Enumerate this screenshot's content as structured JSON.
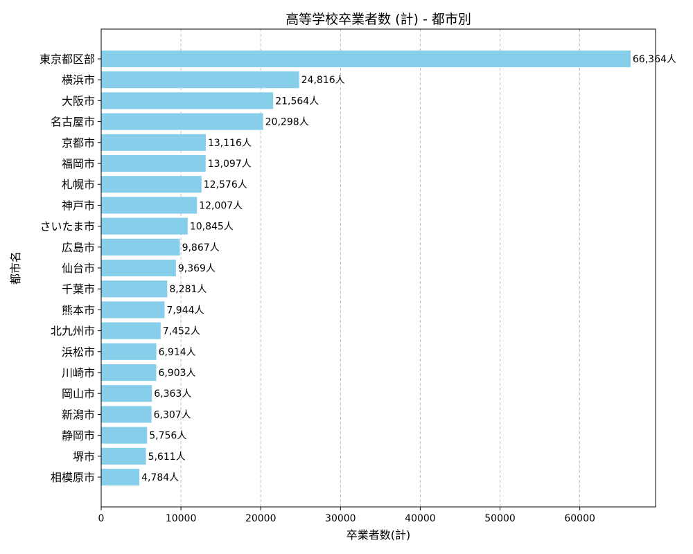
{
  "chart_data": {
    "type": "bar",
    "orientation": "horizontal",
    "title": "高等学校卒業者数 (計) - 都市別",
    "xlabel": "卒業者数(計)",
    "ylabel": "都市名",
    "xlim": [
      0,
      69500
    ],
    "xticks": [
      0,
      10000,
      20000,
      30000,
      40000,
      50000,
      60000
    ],
    "grid": "x-axis dashed",
    "bar_color": "#87CEEB",
    "value_suffix": "人",
    "categories": [
      "東京都区部",
      "横浜市",
      "大阪市",
      "名古屋市",
      "京都市",
      "福岡市",
      "札幌市",
      "神戸市",
      "さいたま市",
      "広島市",
      "仙台市",
      "千葉市",
      "熊本市",
      "北九州市",
      "浜松市",
      "川崎市",
      "岡山市",
      "新潟市",
      "静岡市",
      "堺市",
      "相模原市"
    ],
    "values": [
      66364,
      24816,
      21564,
      20298,
      13116,
      13097,
      12576,
      12007,
      10845,
      9867,
      9369,
      8281,
      7944,
      7452,
      6914,
      6903,
      6363,
      6307,
      5756,
      5611,
      4784
    ],
    "data_labels": [
      "66,364人",
      "24,816人",
      "21,564人",
      "20,298人",
      "13,116人",
      "13,097人",
      "12,576人",
      "12,007人",
      "10,845人",
      "9,867人",
      "9,369人",
      "8,281人",
      "7,944人",
      "7,452人",
      "6,914人",
      "6,903人",
      "6,363人",
      "6,307人",
      "5,756人",
      "5,611人",
      "4,784人"
    ]
  }
}
